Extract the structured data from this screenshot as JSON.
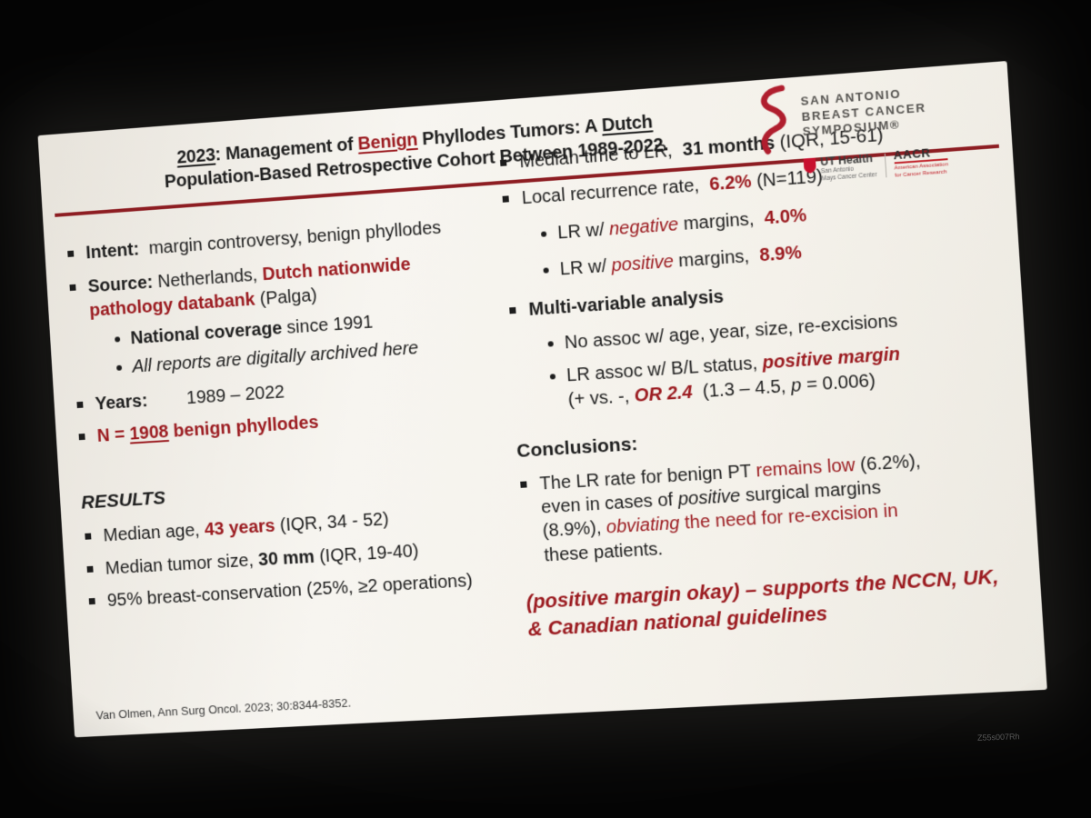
{
  "title": {
    "line1": [
      {
        "t": "2023",
        "s": "bu"
      },
      {
        "t": ": Management of ",
        "s": "b"
      },
      {
        "t": "Benign",
        "s": "bru"
      },
      {
        "t": " Phyllodes Tumors: A ",
        "s": "b"
      },
      {
        "t": "Dutch",
        "s": "bu"
      }
    ],
    "line2": [
      {
        "t": "Population-Based Retrospective Cohort Between 1989-2022.",
        "s": "b"
      }
    ]
  },
  "logos": {
    "symposium_lines": [
      "SAN ANTONIO",
      "BREAST CANCER",
      "SYMPOSIUM®"
    ],
    "uthealth": {
      "title": "UT Health",
      "subtitle": "San Antonio",
      "center": "Mays Cancer Center"
    },
    "aacr": {
      "title": "AACR",
      "sub_lines": [
        "American Association",
        "for Cancer Research"
      ]
    }
  },
  "left": {
    "intent": [
      {
        "t": "Intent:",
        "s": "b"
      },
      {
        "t": "  margin controversy, benign phyllodes"
      }
    ],
    "source": [
      {
        "t": "Source: ",
        "s": "b"
      },
      {
        "t": "Netherlands, "
      },
      {
        "t": "Dutch nationwide",
        "s": "br"
      },
      {
        "t": "\n"
      },
      {
        "t": "pathology databank ",
        "s": "br"
      },
      {
        "t": "(Palga)"
      }
    ],
    "coverage": [
      {
        "t": "National coverage ",
        "s": "b"
      },
      {
        "t": "since 1991"
      }
    ],
    "reports": [
      {
        "t": "All reports are digitally archived here",
        "s": "i"
      }
    ],
    "years": [
      {
        "t": "Years:",
        "s": "b"
      },
      {
        "t": "        1989 – 2022"
      }
    ],
    "n": [
      {
        "t": "N = ",
        "s": "br"
      },
      {
        "t": "1908",
        "s": "bru"
      },
      {
        "t": " benign phyllodes",
        "s": "br"
      }
    ],
    "results_heading": [
      {
        "t": "RESULTS",
        "s": "bi"
      }
    ],
    "r1": [
      {
        "t": "Median age, "
      },
      {
        "t": "43 years ",
        "s": "br"
      },
      {
        "t": "(IQR, 34 - 52)"
      }
    ],
    "r2": [
      {
        "t": "Median tumor size, "
      },
      {
        "t": "30 mm ",
        "s": "b"
      },
      {
        "t": "(IQR, 19-40)"
      }
    ],
    "r3": [
      {
        "t": "95% breast-conservation (25%, ≥2 operations)"
      }
    ],
    "footer": "Van Olmen, Ann Surg Oncol. 2023; 30:8344-8352."
  },
  "right": {
    "t1": [
      {
        "t": "Median time to LR,  "
      },
      {
        "t": "31 months ",
        "s": "b"
      },
      {
        "t": "(IQR, 15-61)"
      }
    ],
    "t2": [
      {
        "t": "Local recurrence rate,  "
      },
      {
        "t": "6.2% ",
        "s": "br"
      },
      {
        "t": "(N=119)"
      }
    ],
    "s1": [
      {
        "t": "LR w/ "
      },
      {
        "t": "negative",
        "s": "ir"
      },
      {
        "t": " margins,  "
      },
      {
        "t": "4.0%",
        "s": "br"
      }
    ],
    "s2": [
      {
        "t": "LR w/ "
      },
      {
        "t": "positive",
        "s": "ir"
      },
      {
        "t": " margins,  "
      },
      {
        "t": "8.9%",
        "s": "br"
      }
    ],
    "mva": [
      {
        "t": "Multi-variable analysis",
        "s": "b"
      }
    ],
    "m1": [
      {
        "t": "No assoc w/ age, year, size, re-excisions"
      }
    ],
    "m2": [
      {
        "t": "LR assoc w/ B/L status, "
      },
      {
        "t": "positive margin",
        "s": "bir"
      },
      {
        "t": "\n(+ vs. -, "
      },
      {
        "t": "OR 2.4",
        "s": "bir"
      },
      {
        "t": "  (1.3 – 4.5, "
      },
      {
        "t": "p",
        "s": "i"
      },
      {
        "t": " = 0.006)"
      }
    ],
    "conclusions_heading": [
      {
        "t": "Conclusions:",
        "s": "b"
      }
    ],
    "c1": [
      {
        "t": "The LR rate for benign PT "
      },
      {
        "t": "remains low",
        "s": "r"
      },
      {
        "t": " (6.2%),\neven in cases of "
      },
      {
        "t": "positive",
        "s": "i"
      },
      {
        "t": " surgical margins\n(8.9%), "
      },
      {
        "t": "obviating",
        "s": "ir"
      },
      {
        "t": " the need for re-excision in",
        "s": "r"
      },
      {
        "t": "\nthese patients."
      }
    ],
    "final": [
      {
        "t": "(positive margin okay) – supports the NCCN, UK,\n& Canadian national guidelines",
        "s": "bir"
      }
    ]
  },
  "watermark": "Z55s007Rh"
}
